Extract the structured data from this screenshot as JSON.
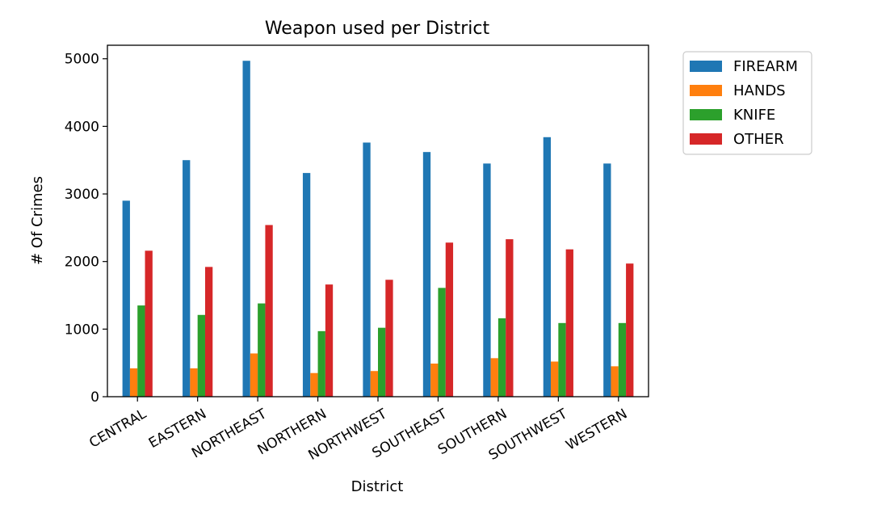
{
  "chart_data": {
    "type": "bar",
    "title": "Weapon used per District",
    "xlabel": "District",
    "ylabel": "# Of Crimes",
    "ylim": [
      0,
      5200
    ],
    "yticks": [
      0,
      1000,
      2000,
      3000,
      4000,
      5000
    ],
    "grid": false,
    "legend_position": "outside-top-right",
    "categories": [
      "CENTRAL",
      "EASTERN",
      "NORTHEAST",
      "NORTHERN",
      "NORTHWEST",
      "SOUTHEAST",
      "SOUTHERN",
      "SOUTHWEST",
      "WESTERN"
    ],
    "series": [
      {
        "name": "FIREARM",
        "color": "#1f77b4",
        "values": [
          2900,
          3500,
          4970,
          3310,
          3760,
          3620,
          3450,
          3840,
          3450
        ]
      },
      {
        "name": "HANDS",
        "color": "#ff7f0e",
        "values": [
          420,
          420,
          640,
          350,
          380,
          490,
          570,
          520,
          450
        ]
      },
      {
        "name": "KNIFE",
        "color": "#2ca02c",
        "values": [
          1350,
          1210,
          1380,
          970,
          1020,
          1610,
          1160,
          1090,
          1090
        ]
      },
      {
        "name": "OTHER",
        "color": "#d62728",
        "values": [
          2160,
          1920,
          2540,
          1660,
          1730,
          2280,
          2330,
          2180,
          1970
        ]
      }
    ]
  }
}
